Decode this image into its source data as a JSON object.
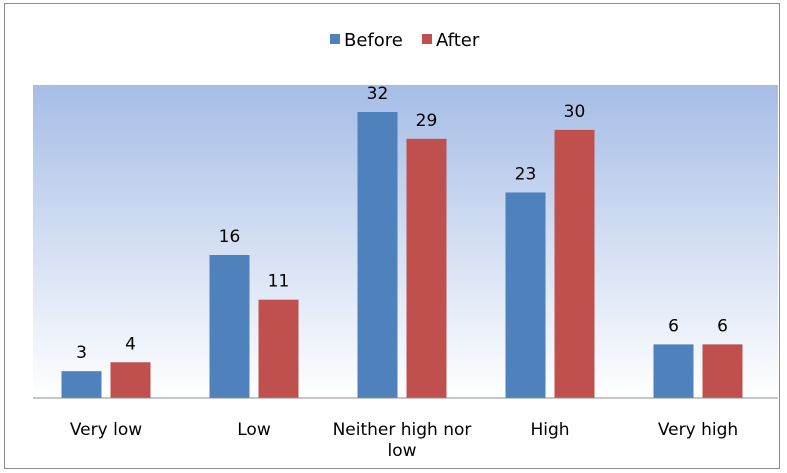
{
  "chart_data": {
    "type": "bar",
    "title": "",
    "xlabel": "",
    "ylabel": "",
    "categories": [
      [
        "Very low"
      ],
      [
        "Low"
      ],
      [
        "Neither high nor",
        "low"
      ],
      [
        "High"
      ],
      [
        "Very high"
      ]
    ],
    "series": [
      {
        "name": "Before",
        "values": [
          3,
          16,
          32,
          23,
          6
        ],
        "color": "#4f81bd"
      },
      {
        "name": "After",
        "values": [
          4,
          11,
          29,
          30,
          6
        ],
        "color": "#c0504d"
      }
    ],
    "ylim": [
      0,
      32
    ],
    "grid": false,
    "legend": "top",
    "data_labels": true,
    "plot_background": "gradient #a8bfe6 to #ffffff"
  }
}
